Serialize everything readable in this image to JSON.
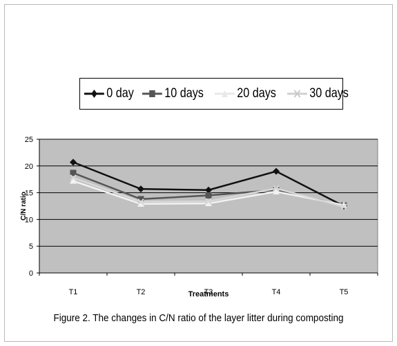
{
  "chart_data": {
    "type": "line",
    "categories": [
      "T1",
      "T2",
      "T3",
      "T4",
      "T5"
    ],
    "series": [
      {
        "name": "0 day",
        "values": [
          20.7,
          15.7,
          15.5,
          19.0,
          12.5
        ],
        "color": "#111111",
        "marker": "diamond"
      },
      {
        "name": "10 days",
        "values": [
          18.7,
          13.8,
          14.5,
          15.5,
          12.6
        ],
        "color": "#555555",
        "marker": "square"
      },
      {
        "name": "20 days",
        "values": [
          17.2,
          12.9,
          13.0,
          15.2,
          12.7
        ],
        "color": "#f2f2f2",
        "marker": "triangle"
      },
      {
        "name": "30 days",
        "values": [
          17.8,
          13.3,
          13.4,
          15.8,
          12.4
        ],
        "color": "#d8d8d8",
        "marker": "x"
      }
    ],
    "ylim": [
      0,
      25
    ],
    "yticks": [
      0,
      5,
      10,
      15,
      20,
      25
    ],
    "xlabel": "Treatments",
    "ylabel": "C/N ratio",
    "plot_bg": "#c0c0c0",
    "grid": true,
    "legend": "top"
  },
  "caption": "Figure 2. The changes  in C/N ratio of the layer litter during  composting"
}
